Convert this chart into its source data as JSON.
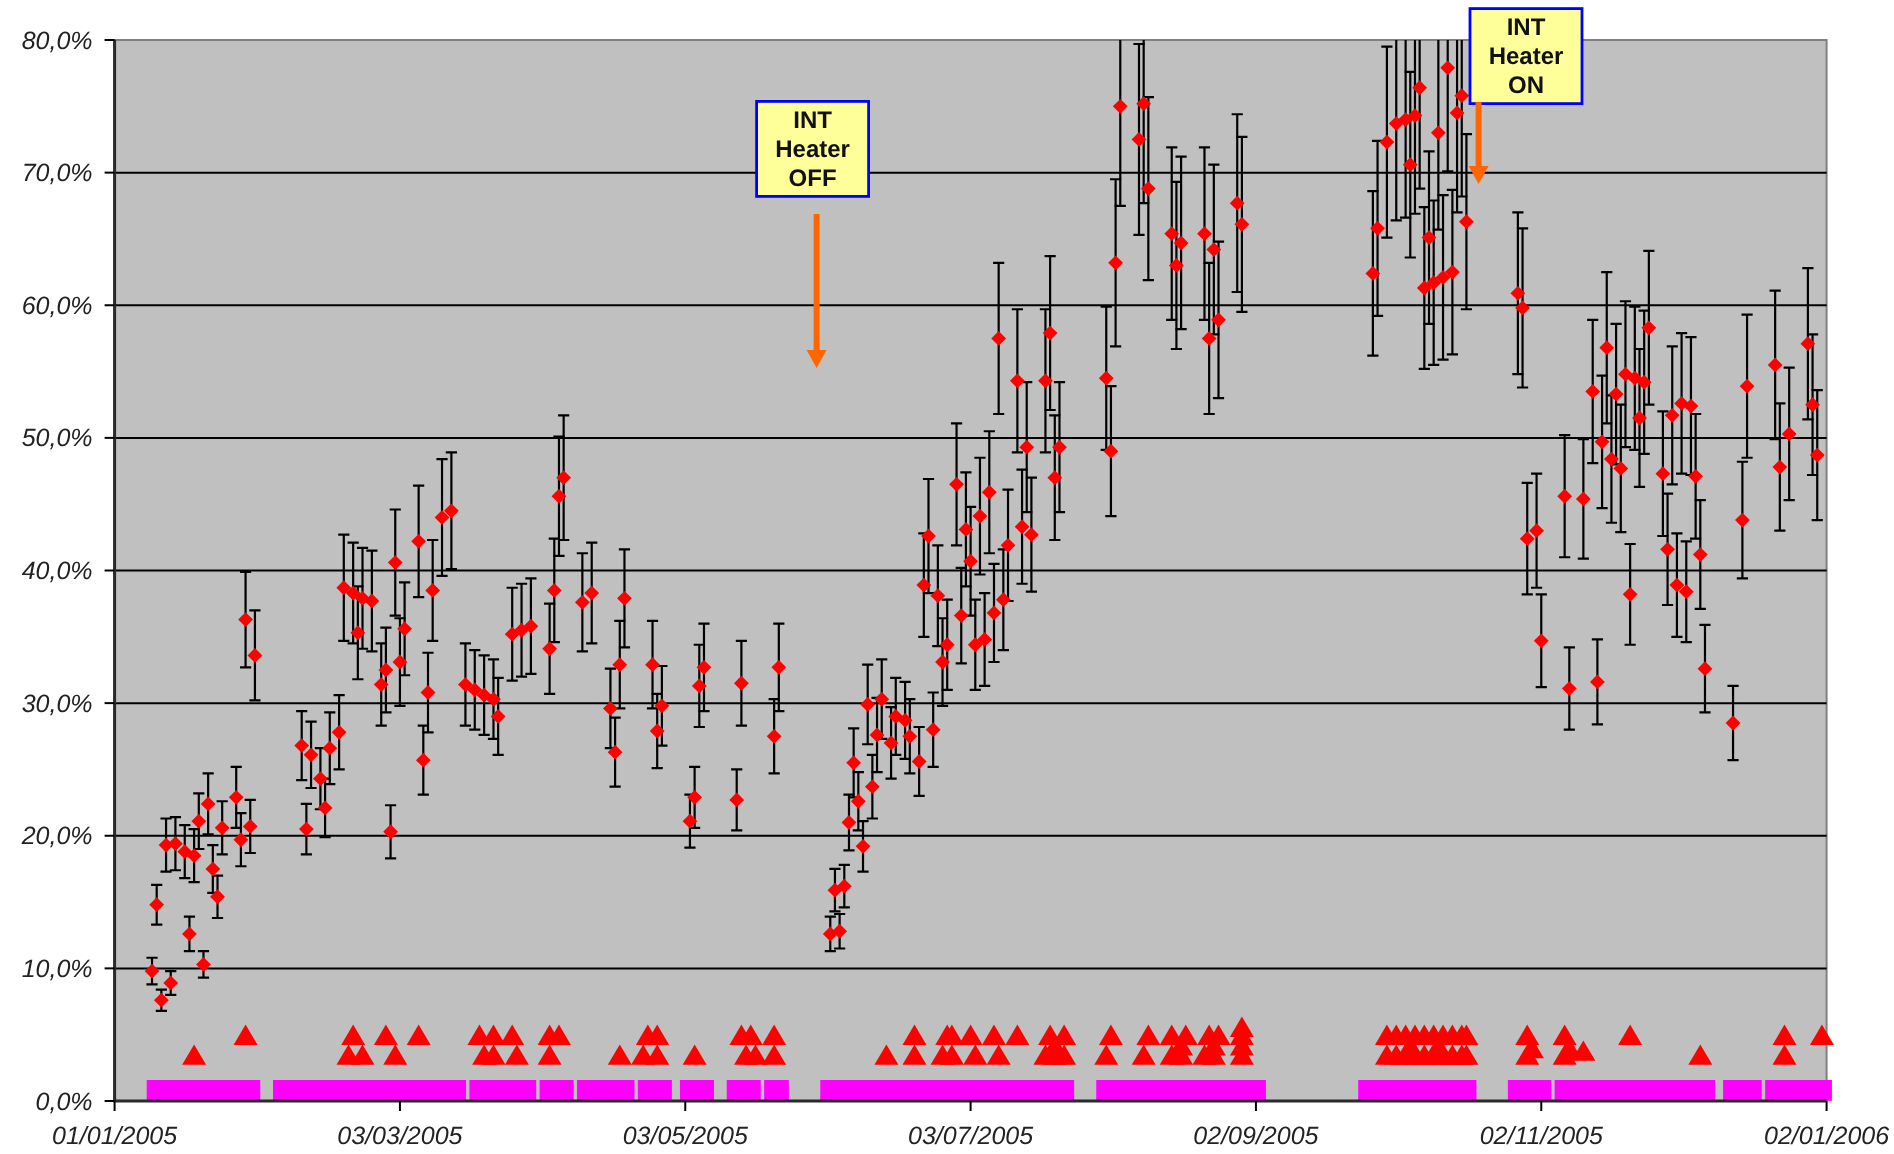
{
  "chart_data": {
    "type": "scatter",
    "xlim": [
      "2005-01-01",
      "2006-01-02"
    ],
    "xticks": [
      {
        "value": "2005-01-01",
        "label": "01/01/2005"
      },
      {
        "value": "2005-03-03",
        "label": "03/03/2005"
      },
      {
        "value": "2005-05-03",
        "label": "03/05/2005"
      },
      {
        "value": "2005-07-03",
        "label": "03/07/2005"
      },
      {
        "value": "2005-09-02",
        "label": "02/09/2005"
      },
      {
        "value": "2005-11-02",
        "label": "02/11/2005"
      },
      {
        "value": "2006-01-02",
        "label": "02/01/2006"
      }
    ],
    "ylim": [
      0,
      80
    ],
    "yticks": [
      {
        "value": 0,
        "label": "0,0%"
      },
      {
        "value": 10,
        "label": "10,0%"
      },
      {
        "value": 20,
        "label": "20,0%"
      },
      {
        "value": 30,
        "label": "30,0%"
      },
      {
        "value": 40,
        "label": "40,0%"
      },
      {
        "value": 50,
        "label": "50,0%"
      },
      {
        "value": 60,
        "label": "60,0%"
      },
      {
        "value": 70,
        "label": "70,0%"
      },
      {
        "value": 80,
        "label": "80,0%"
      }
    ],
    "grid": "y",
    "series": [
      {
        "type": "scatter",
        "color": "#ff00ff",
        "marker": "square",
        "x": [
          "2005-01-10",
          "2005-01-13",
          "2005-01-16",
          "2005-01-19",
          "2005-01-22",
          "2005-01-25",
          "2005-01-28",
          "2005-01-30",
          "2005-02-06",
          "2005-02-09",
          "2005-02-12",
          "2005-02-15",
          "2005-02-18",
          "2005-02-21",
          "2005-02-24",
          "2005-02-27",
          "2005-03-02",
          "2005-03-05",
          "2005-03-08",
          "2005-03-11",
          "2005-03-15",
          "2005-03-20",
          "2005-03-23",
          "2005-03-26",
          "2005-03-30",
          "2005-04-04",
          "2005-04-07",
          "2005-04-12",
          "2005-04-15",
          "2005-04-18",
          "2005-04-20",
          "2005-04-25",
          "2005-04-28",
          "2005-05-04",
          "2005-05-07",
          "2005-05-14",
          "2005-05-17",
          "2005-05-22",
          "2005-05-23",
          "2005-06-03",
          "2005-06-06",
          "2005-06-09",
          "2005-06-12",
          "2005-06-15",
          "2005-06-18",
          "2005-06-21",
          "2005-06-24",
          "2005-06-27",
          "2005-06-30",
          "2005-07-03",
          "2005-07-06",
          "2005-07-09",
          "2005-07-12",
          "2005-07-15",
          "2005-07-18",
          "2005-07-21",
          "2005-07-23",
          "2005-08-01",
          "2005-08-04",
          "2005-08-07",
          "2005-08-10",
          "2005-08-13",
          "2005-08-16",
          "2005-08-19",
          "2005-08-22",
          "2005-08-25",
          "2005-08-28",
          "2005-08-31",
          "2005-09-02",
          "2005-09-26",
          "2005-09-29",
          "2005-10-02",
          "2005-10-05",
          "2005-10-08",
          "2005-10-11",
          "2005-10-14",
          "2005-10-17",
          "2005-10-28",
          "2005-10-31",
          "2005-11-02",
          "2005-11-07",
          "2005-11-10",
          "2005-11-13",
          "2005-11-16",
          "2005-11-19",
          "2005-11-22",
          "2005-11-25",
          "2005-11-28",
          "2005-12-01",
          "2005-12-04",
          "2005-12-07",
          "2005-12-13",
          "2005-12-17",
          "2005-12-22",
          "2005-12-25",
          "2005-12-28",
          "2006-01-01"
        ],
        "values": [
          0.8,
          0.8,
          0.8,
          0.8,
          0.8,
          0.8,
          0.8,
          0.8,
          0.8,
          0.8,
          0.8,
          0.8,
          0.8,
          0.8,
          0.8,
          0.8,
          0.8,
          0.8,
          0.8,
          0.8,
          0.8,
          0.8,
          0.8,
          0.8,
          0.8,
          0.8,
          0.8,
          0.8,
          0.8,
          0.8,
          0.8,
          0.8,
          0.8,
          0.8,
          0.8,
          0.8,
          0.8,
          0.8,
          0.8,
          0.8,
          0.8,
          0.8,
          0.8,
          0.8,
          0.8,
          0.8,
          0.8,
          0.8,
          0.8,
          0.8,
          0.8,
          0.8,
          0.8,
          0.8,
          0.8,
          0.8,
          0.8,
          0.8,
          0.8,
          0.8,
          0.8,
          0.8,
          0.8,
          0.8,
          0.8,
          0.8,
          0.8,
          0.8,
          0.8,
          0.8,
          0.8,
          0.8,
          0.8,
          0.8,
          0.8,
          0.8,
          0.8,
          0.8,
          0.8,
          0.8,
          0.8,
          0.8,
          0.8,
          0.8,
          0.8,
          0.8,
          0.8,
          0.8,
          0.8,
          0.8,
          0.8,
          0.8,
          0.8,
          0.8,
          0.8,
          0.8,
          0.8
        ]
      },
      {
        "type": "scatter",
        "color": "#ff0000",
        "marker": "triangle",
        "x": [
          "2005-01-18",
          "2005-01-29",
          "2005-02-20",
          "2005-02-21",
          "2005-02-23",
          "2005-02-28",
          "2005-03-02",
          "2005-03-07",
          "2005-03-20",
          "2005-03-21",
          "2005-03-23",
          "2005-03-23",
          "2005-03-27",
          "2005-03-28",
          "2005-04-04",
          "2005-04-04",
          "2005-04-06",
          "2005-04-19",
          "2005-04-24",
          "2005-04-25",
          "2005-04-27",
          "2005-04-27",
          "2005-05-05",
          "2005-05-15",
          "2005-05-16",
          "2005-05-17",
          "2005-05-18",
          "2005-05-22",
          "2005-05-22",
          "2005-06-15",
          "2005-06-21",
          "2005-06-21",
          "2005-06-27",
          "2005-06-28",
          "2005-06-29",
          "2005-06-29",
          "2005-07-03",
          "2005-07-04",
          "2005-07-08",
          "2005-07-09",
          "2005-07-13",
          "2005-07-19",
          "2005-07-20",
          "2005-07-21",
          "2005-07-21",
          "2005-07-23",
          "2005-07-23",
          "2005-08-01",
          "2005-08-02",
          "2005-08-09",
          "2005-08-10",
          "2005-08-15",
          "2005-08-15",
          "2005-08-17",
          "2005-08-17",
          "2005-08-18",
          "2005-08-22",
          "2005-08-23",
          "2005-08-24",
          "2005-08-24",
          "2005-08-25",
          "2005-08-30",
          "2005-08-30",
          "2005-08-30",
          "2005-08-30",
          "2005-09-30",
          "2005-09-30",
          "2005-10-02",
          "2005-10-02",
          "2005-10-04",
          "2005-10-04",
          "2005-10-05",
          "2005-10-06",
          "2005-10-06",
          "2005-10-08",
          "2005-10-08",
          "2005-10-10",
          "2005-10-10",
          "2005-10-11",
          "2005-10-12",
          "2005-10-12",
          "2005-10-14",
          "2005-10-14",
          "2005-10-16",
          "2005-10-16",
          "2005-10-17",
          "2005-10-17",
          "2005-10-30",
          "2005-10-30",
          "2005-10-31",
          "2005-11-07",
          "2005-11-07",
          "2005-11-08",
          "2005-11-11",
          "2005-11-21",
          "2005-12-06",
          "2005-12-24",
          "2005-12-24",
          "2006-01-01"
        ],
        "values": [
          3.3,
          4.8,
          3.3,
          4.8,
          3.3,
          4.8,
          3.3,
          4.8,
          4.8,
          3.3,
          4.8,
          3.3,
          4.8,
          3.3,
          4.8,
          3.3,
          4.8,
          3.3,
          3.3,
          4.8,
          4.8,
          3.3,
          3.3,
          4.8,
          3.3,
          4.8,
          3.3,
          4.8,
          3.3,
          3.3,
          4.8,
          3.3,
          3.3,
          4.8,
          4.8,
          3.3,
          4.8,
          3.3,
          4.8,
          3.3,
          4.8,
          3.3,
          4.8,
          4.0,
          3.3,
          4.8,
          3.3,
          3.3,
          4.8,
          3.3,
          4.8,
          4.8,
          3.3,
          4.0,
          3.3,
          4.8,
          3.3,
          4.8,
          4.0,
          3.3,
          4.8,
          3.3,
          4.0,
          4.8,
          5.4,
          4.8,
          3.3,
          4.8,
          3.3,
          4.8,
          3.3,
          4.0,
          4.8,
          3.3,
          4.8,
          3.3,
          4.8,
          3.3,
          4.0,
          4.8,
          3.3,
          4.8,
          3.3,
          4.8,
          3.3,
          4.8,
          3.3,
          4.8,
          3.3,
          3.8,
          4.8,
          3.3,
          3.8,
          3.6,
          4.8,
          3.3,
          4.8,
          3.3,
          4.8
        ]
      },
      {
        "type": "scatter",
        "color": "#ff0000",
        "marker": "diamond",
        "x": [
          "2005-01-09",
          "2005-01-10",
          "2005-01-12",
          "2005-01-11",
          "2005-01-13",
          "2005-01-14",
          "2005-01-16",
          "2005-01-17",
          "2005-01-18",
          "2005-01-19",
          "2005-01-20",
          "2005-01-21",
          "2005-01-22",
          "2005-01-23",
          "2005-01-24",
          "2005-01-27",
          "2005-01-28",
          "2005-01-30",
          "2005-01-29",
          "2005-01-31",
          "2005-02-11",
          "2005-02-10",
          "2005-02-12",
          "2005-02-14",
          "2005-02-15",
          "2005-02-16",
          "2005-02-18",
          "2005-02-19",
          "2005-02-21",
          "2005-02-22",
          "2005-02-23",
          "2005-02-25",
          "2005-02-27",
          "2005-02-28",
          "2005-03-01",
          "2005-03-02",
          "2005-03-03",
          "2005-03-04",
          "2005-03-07",
          "2005-03-08",
          "2005-03-09",
          "2005-03-10",
          "2005-03-12",
          "2005-03-14",
          "2005-03-17",
          "2005-03-19",
          "2005-03-21",
          "2005-03-23",
          "2005-03-24",
          "2005-03-27",
          "2005-03-29",
          "2005-03-31",
          "2005-04-04",
          "2005-04-05",
          "2005-04-06",
          "2005-04-07",
          "2005-04-11",
          "2005-04-13",
          "2005-04-17",
          "2005-04-18",
          "2005-04-19",
          "2005-04-20",
          "2005-04-26",
          "2005-04-27",
          "2005-04-28",
          "2005-05-04",
          "2005-05-05",
          "2005-05-06",
          "2005-05-07",
          "2005-05-14",
          "2005-05-15",
          "2005-05-22",
          "2005-05-23",
          "2005-06-03",
          "2005-06-04",
          "2005-06-05",
          "2005-06-06",
          "2005-06-07",
          "2005-06-08",
          "2005-06-09",
          "2005-06-10",
          "2005-06-11",
          "2005-06-12",
          "2005-06-13",
          "2005-06-14",
          "2005-06-16",
          "2005-06-17",
          "2005-06-19",
          "2005-06-20",
          "2005-06-22",
          "2005-06-23",
          "2005-06-24",
          "2005-06-25",
          "2005-06-26",
          "2005-06-27",
          "2005-06-28",
          "2005-06-30",
          "2005-07-01",
          "2005-07-02",
          "2005-07-03",
          "2005-07-04",
          "2005-07-05",
          "2005-07-06",
          "2005-07-07",
          "2005-07-08",
          "2005-07-10",
          "2005-07-09",
          "2005-07-11",
          "2005-07-13",
          "2005-07-14",
          "2005-07-15",
          "2005-07-16",
          "2005-07-19",
          "2005-07-20",
          "2005-07-21",
          "2005-07-22",
          "2005-08-01",
          "2005-08-02",
          "2005-08-03",
          "2005-08-04",
          "2005-08-08",
          "2005-08-09",
          "2005-08-10",
          "2005-08-15",
          "2005-08-16",
          "2005-08-17",
          "2005-08-22",
          "2005-08-23",
          "2005-08-24",
          "2005-08-25",
          "2005-08-29",
          "2005-08-30",
          "2005-09-27",
          "2005-09-28",
          "2005-09-30",
          "2005-10-02",
          "2005-10-04",
          "2005-10-06",
          "2005-10-05",
          "2005-10-07",
          "2005-10-09",
          "2005-10-11",
          "2005-10-08",
          "2005-10-10",
          "2005-10-12",
          "2005-10-14",
          "2005-10-13",
          "2005-10-15",
          "2005-10-16",
          "2005-10-17",
          "2005-10-28",
          "2005-10-29",
          "2005-11-01",
          "2005-10-30",
          "2005-11-02",
          "2005-11-07",
          "2005-11-08",
          "2005-11-11",
          "2005-11-13",
          "2005-11-14",
          "2005-11-15",
          "2005-11-16",
          "2005-11-17",
          "2005-11-19",
          "2005-11-18",
          "2005-11-20",
          "2005-11-22",
          "2005-11-21",
          "2005-11-24",
          "2005-11-23",
          "2005-11-25",
          "2005-11-28",
          "2005-11-29",
          "2005-11-30",
          "2005-12-01",
          "2005-12-03",
          "2005-12-02",
          "2005-12-04",
          "2005-12-05",
          "2005-12-06",
          "2005-12-07",
          "2005-12-13",
          "2005-12-15",
          "2005-12-16",
          "2005-12-22",
          "2005-12-23",
          "2005-12-25",
          "2005-12-29",
          "2005-12-30",
          "2005-12-31"
        ],
        "values": [
          9.8,
          14.8,
          19.3,
          7.6,
          8.9,
          19.4,
          18.8,
          12.6,
          18.5,
          21.1,
          10.3,
          22.4,
          17.5,
          15.4,
          20.6,
          22.9,
          19.7,
          20.7,
          36.3,
          33.6,
          20.5,
          26.8,
          26.1,
          24.3,
          22.1,
          26.6,
          27.8,
          38.7,
          38.3,
          35.3,
          37.9,
          37.7,
          31.4,
          32.5,
          20.3,
          40.6,
          33.1,
          35.6,
          42.2,
          25.7,
          30.8,
          38.5,
          44.0,
          44.5,
          31.4,
          31.0,
          30.6,
          30.3,
          29.0,
          35.2,
          35.5,
          35.8,
          34.1,
          38.5,
          45.6,
          47.0,
          37.6,
          38.3,
          29.6,
          26.3,
          32.9,
          37.9,
          32.9,
          27.9,
          29.8,
          21.1,
          22.9,
          31.3,
          32.7,
          22.7,
          31.5,
          27.5,
          32.7,
          12.6,
          15.9,
          12.8,
          16.2,
          21.0,
          25.5,
          22.6,
          19.2,
          29.9,
          23.7,
          27.6,
          30.3,
          27.0,
          29.0,
          28.7,
          27.5,
          25.6,
          38.9,
          42.6,
          28.0,
          38.1,
          33.1,
          34.4,
          46.5,
          36.6,
          43.1,
          40.7,
          34.4,
          44.1,
          34.8,
          45.9,
          36.8,
          37.8,
          57.5,
          41.9,
          54.3,
          43.3,
          49.3,
          42.7,
          54.3,
          57.9,
          47.0,
          49.3,
          54.5,
          49.0,
          63.2,
          75.0,
          72.5,
          75.2,
          68.8,
          65.4,
          63.0,
          64.7,
          65.4,
          57.5,
          64.2,
          58.9,
          67.7,
          66.1,
          62.4,
          65.8,
          72.3,
          73.7,
          74.0,
          74.3,
          70.6,
          76.4,
          65.1,
          73.0,
          61.3,
          61.7,
          62.1,
          62.5,
          77.9,
          74.5,
          75.8,
          66.3,
          60.9,
          59.8,
          43.0,
          42.4,
          34.7,
          45.6,
          31.1,
          45.4,
          53.5,
          31.6,
          49.7,
          56.8,
          48.4,
          47.7,
          53.3,
          54.8,
          54.5,
          38.2,
          54.2,
          51.5,
          58.3,
          47.3,
          41.6,
          51.7,
          38.9,
          38.4,
          52.6,
          52.4,
          47.1,
          41.2,
          32.6,
          28.5,
          43.8,
          53.9,
          55.5,
          47.8,
          50.3,
          57.1,
          52.5,
          48.7
        ],
        "errors": [
          1.0,
          1.5,
          2,
          0.8,
          0.9,
          2,
          2,
          1.3,
          2,
          2.1,
          1,
          2.3,
          1.8,
          1.6,
          2,
          2.3,
          2,
          2,
          3.6,
          3.4,
          1.9,
          2.6,
          2.5,
          2.3,
          2.2,
          2.7,
          2.8,
          4,
          3.8,
          3.5,
          3.8,
          3.8,
          3.1,
          3.2,
          2,
          4,
          3.3,
          3.5,
          4.2,
          2.6,
          3,
          3.8,
          4.4,
          4.4,
          3.1,
          3,
          3,
          3,
          2.9,
          3.5,
          3.5,
          3.6,
          3.4,
          3.9,
          4.5,
          4.7,
          3.7,
          3.8,
          3,
          2.6,
          3.3,
          3.7,
          3.3,
          2.8,
          3,
          2,
          2.3,
          3.1,
          3.3,
          2.3,
          3.2,
          2.8,
          3.3,
          1.3,
          1.6,
          1.3,
          1.6,
          2.1,
          2.6,
          2.2,
          1.9,
          3,
          2.4,
          2.8,
          3,
          2.7,
          2.9,
          2.9,
          2.8,
          2.6,
          3.9,
          4.3,
          2.8,
          3.8,
          3.3,
          3.4,
          4.6,
          3.6,
          4.3,
          4.1,
          3.4,
          4.4,
          3.5,
          4.6,
          3.7,
          3.8,
          5.7,
          4.2,
          5.4,
          4.3,
          4.9,
          4.3,
          5.4,
          5.8,
          4.7,
          4.9,
          5.4,
          4.9,
          6.3,
          [
            67.5,
            80
          ],
          7.2,
          [
            67.7,
            80
          ],
          6.9,
          6.5,
          6.3,
          6.5,
          6.5,
          5.7,
          6.4,
          5.9,
          6.7,
          6.6,
          6.2,
          6.6,
          7.2,
          [
            66.4,
            80
          ],
          [
            66.6,
            80
          ],
          [
            66.9,
            80
          ],
          7,
          [
            68.8,
            80
          ],
          6.5,
          [
            65.7,
            80
          ],
          6.1,
          6.2,
          6.2,
          6.2,
          [
            70.1,
            80
          ],
          [
            67.0,
            80
          ],
          [
            68.2,
            80
          ],
          6.6,
          6.1,
          6,
          4.3,
          4.2,
          3.5,
          4.6,
          3.1,
          4.5,
          5.4,
          3.2,
          5,
          5.7,
          4.8,
          4.8,
          5.3,
          5.5,
          5.4,
          3.8,
          5.4,
          5.2,
          5.8,
          4.7,
          4.2,
          5.2,
          3.9,
          3.8,
          5.3,
          5.2,
          4.7,
          4.1,
          3.3,
          2.8,
          4.4,
          5.4,
          5.6,
          4.8,
          5,
          5.7,
          5.3,
          4.9
        ]
      }
    ],
    "annotations": [
      "INT Heater OFF",
      "INT Heater ON"
    ]
  }
}
